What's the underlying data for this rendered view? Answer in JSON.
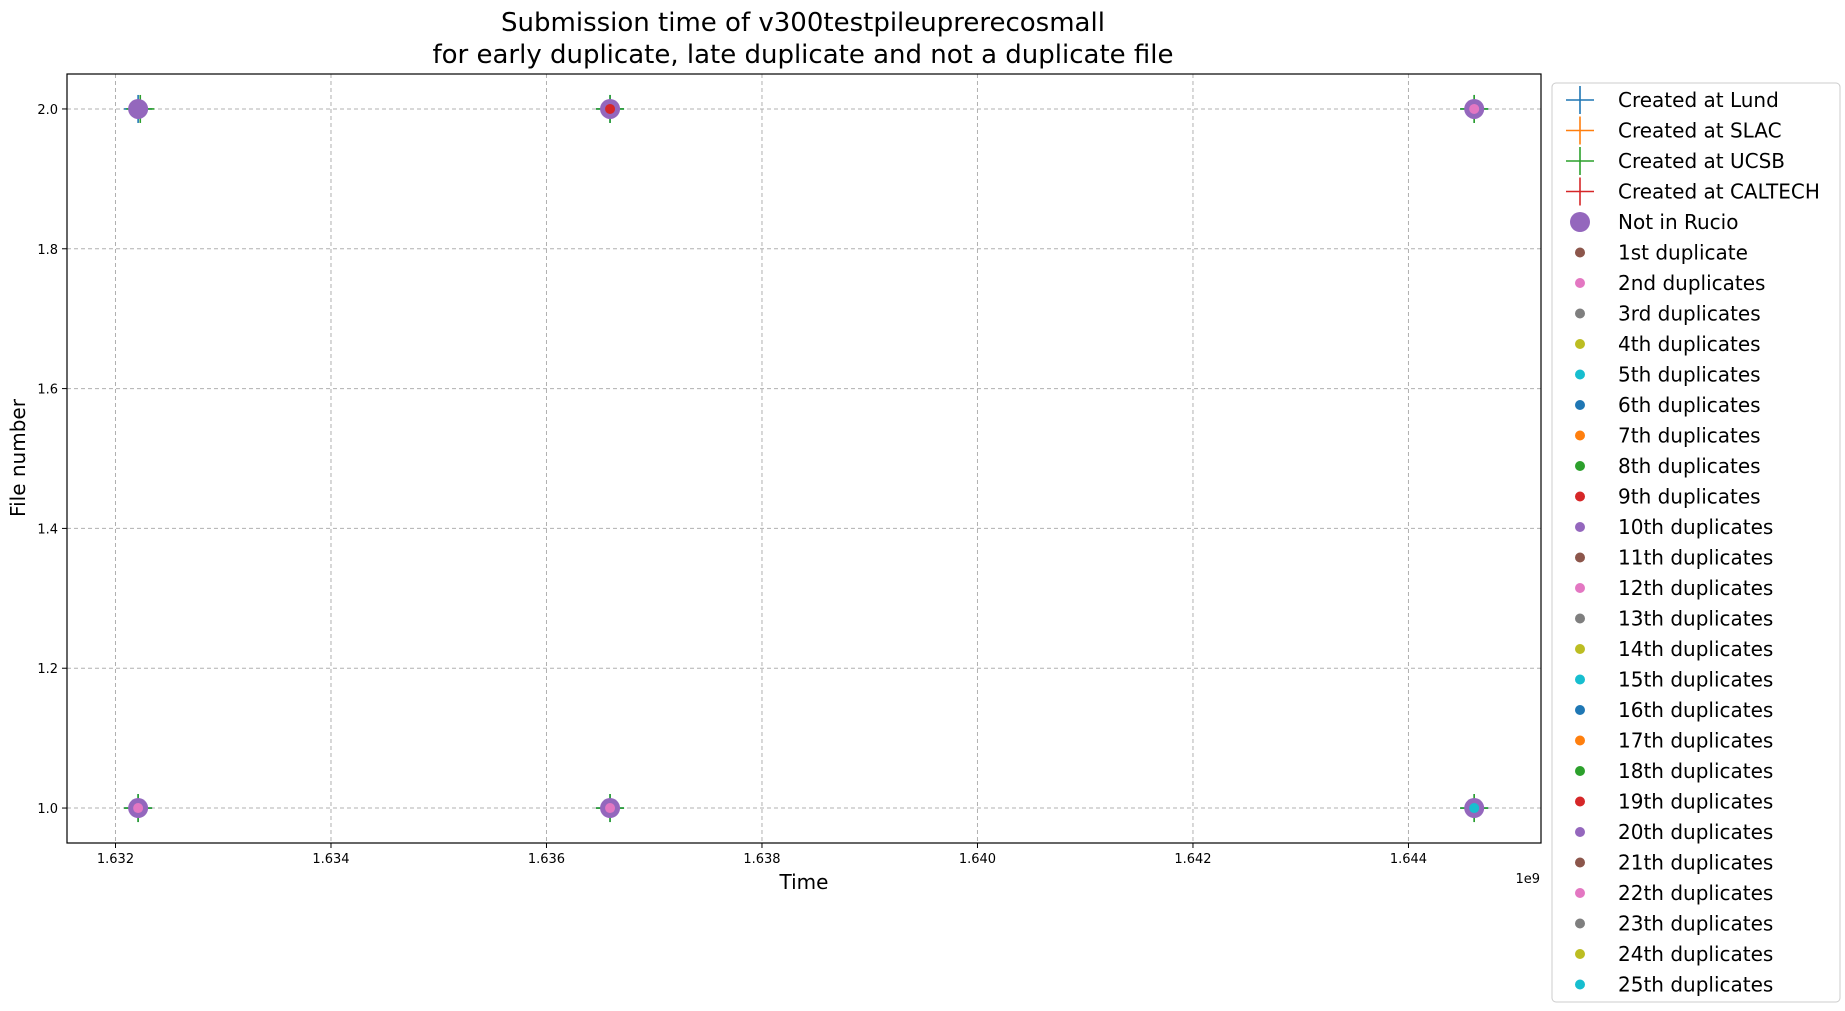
{
  "chart_data": {
    "type": "scatter",
    "title_lines": [
      "Submission time of v300testpileuprerecosmall",
      "for early duplicate, late duplicate and not a duplicate file"
    ],
    "xlabel": "Time",
    "ylabel": "File number",
    "x_offset_label": "1e9",
    "xlim": [
      1.63155,
      1.64523
    ],
    "ylim": [
      0.95,
      2.05
    ],
    "x_ticks": [
      1.632,
      1.634,
      1.636,
      1.638,
      1.64,
      1.642,
      1.644
    ],
    "x_tick_labels": [
      "1.632",
      "1.634",
      "1.636",
      "1.638",
      "1.640",
      "1.642",
      "1.644"
    ],
    "y_ticks": [
      1.0,
      1.2,
      1.4,
      1.6,
      1.8,
      2.0
    ],
    "y_tick_labels": [
      "1.0",
      "1.2",
      "1.4",
      "1.6",
      "1.8",
      "2.0"
    ],
    "grid": true,
    "legend_position": "outside right",
    "series": [
      {
        "name": "Created at Lund",
        "marker": "plus",
        "color": "#1f77b4",
        "points": [
          {
            "x": 1.63221,
            "y": 1.0
          },
          {
            "x": 1.63221,
            "y": 2.0
          },
          {
            "x": 1.63659,
            "y": 1.0
          },
          {
            "x": 1.63659,
            "y": 2.0
          },
          {
            "x": 1.64461,
            "y": 1.0
          },
          {
            "x": 1.64461,
            "y": 2.0
          }
        ]
      },
      {
        "name": "Created at SLAC",
        "marker": "plus",
        "color": "#ff7f0e",
        "points": []
      },
      {
        "name": "Created at UCSB",
        "marker": "plus",
        "color": "#2ca02c",
        "points": [
          {
            "x": 1.63221,
            "y": 1.0
          },
          {
            "x": 1.63223,
            "y": 2.0
          },
          {
            "x": 1.63659,
            "y": 1.0
          },
          {
            "x": 1.63659,
            "y": 2.0
          },
          {
            "x": 1.64461,
            "y": 1.0
          },
          {
            "x": 1.64461,
            "y": 2.0
          }
        ]
      },
      {
        "name": "Created at CALTECH",
        "marker": "plus",
        "color": "#d62728",
        "points": []
      },
      {
        "name": "Not in Rucio",
        "marker": "big-circle",
        "color": "#9467bd",
        "points": [
          {
            "x": 1.63221,
            "y": 1.0
          },
          {
            "x": 1.63221,
            "y": 2.0
          },
          {
            "x": 1.63659,
            "y": 1.0
          },
          {
            "x": 1.63659,
            "y": 2.0
          },
          {
            "x": 1.64461,
            "y": 1.0
          },
          {
            "x": 1.64461,
            "y": 2.0
          }
        ]
      },
      {
        "name": "1st duplicate",
        "marker": "dot",
        "color": "#8c564b",
        "points": []
      },
      {
        "name": "2nd duplicates",
        "marker": "dot",
        "color": "#e377c2",
        "points": [
          {
            "x": 1.63221,
            "y": 1.0
          },
          {
            "x": 1.63659,
            "y": 1.0
          },
          {
            "x": 1.64461,
            "y": 2.0
          }
        ]
      },
      {
        "name": "3rd duplicates",
        "marker": "dot",
        "color": "#7f7f7f",
        "points": []
      },
      {
        "name": "4th duplicates",
        "marker": "dot",
        "color": "#bcbd22",
        "points": []
      },
      {
        "name": "5th duplicates",
        "marker": "dot",
        "color": "#17becf",
        "points": [
          {
            "x": 1.64461,
            "y": 1.0
          }
        ]
      },
      {
        "name": "6th duplicates",
        "marker": "dot",
        "color": "#1f77b4",
        "points": []
      },
      {
        "name": "7th duplicates",
        "marker": "dot",
        "color": "#ff7f0e",
        "points": []
      },
      {
        "name": "8th duplicates",
        "marker": "dot",
        "color": "#2ca02c",
        "points": []
      },
      {
        "name": "9th duplicates",
        "marker": "dot",
        "color": "#d62728",
        "points": [
          {
            "x": 1.63659,
            "y": 2.0
          }
        ]
      },
      {
        "name": "10th duplicates",
        "marker": "dot",
        "color": "#9467bd",
        "points": []
      },
      {
        "name": "11th duplicates",
        "marker": "dot",
        "color": "#8c564b",
        "points": []
      },
      {
        "name": "12th duplicates",
        "marker": "dot",
        "color": "#e377c2",
        "points": []
      },
      {
        "name": "13th duplicates",
        "marker": "dot",
        "color": "#7f7f7f",
        "points": []
      },
      {
        "name": "14th duplicates",
        "marker": "dot",
        "color": "#bcbd22",
        "points": []
      },
      {
        "name": "15th duplicates",
        "marker": "dot",
        "color": "#17becf",
        "points": []
      },
      {
        "name": "16th duplicates",
        "marker": "dot",
        "color": "#1f77b4",
        "points": []
      },
      {
        "name": "17th duplicates",
        "marker": "dot",
        "color": "#ff7f0e",
        "points": []
      },
      {
        "name": "18th duplicates",
        "marker": "dot",
        "color": "#2ca02c",
        "points": []
      },
      {
        "name": "19th duplicates",
        "marker": "dot",
        "color": "#d62728",
        "points": []
      },
      {
        "name": "20th duplicates",
        "marker": "dot",
        "color": "#9467bd",
        "points": []
      },
      {
        "name": "21th duplicates",
        "marker": "dot",
        "color": "#8c564b",
        "points": []
      },
      {
        "name": "22th duplicates",
        "marker": "dot",
        "color": "#e377c2",
        "points": []
      },
      {
        "name": "23th duplicates",
        "marker": "dot",
        "color": "#7f7f7f",
        "points": []
      },
      {
        "name": "24th duplicates",
        "marker": "dot",
        "color": "#bcbd22",
        "points": []
      },
      {
        "name": "25th duplicates",
        "marker": "dot",
        "color": "#17becf",
        "points": []
      }
    ]
  }
}
